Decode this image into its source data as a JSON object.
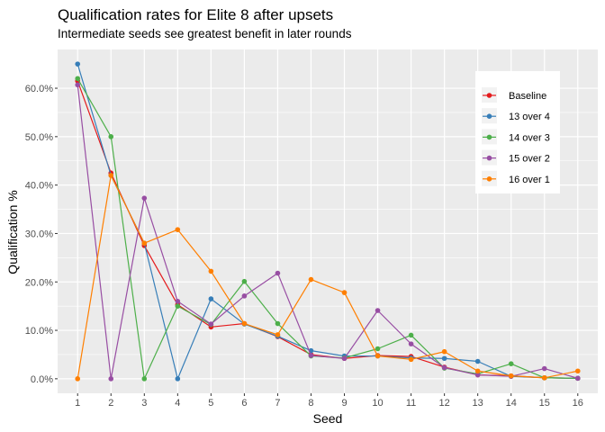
{
  "chart_data": {
    "type": "line",
    "title": "Qualification rates for Elite 8 after upsets",
    "subtitle": "Intermediate seeds see greatest benefit in later rounds",
    "xlabel": "Seed",
    "ylabel": "Qualification %",
    "x": [
      1,
      2,
      3,
      4,
      5,
      6,
      7,
      8,
      9,
      10,
      11,
      12,
      13,
      14,
      15,
      16
    ],
    "xlim": [
      0.4,
      16.6
    ],
    "ylim": [
      -0.03,
      0.68
    ],
    "yticks": [
      0,
      0.1,
      0.2,
      0.3,
      0.4,
      0.5,
      0.6
    ],
    "ytick_labels": [
      "0.0%",
      "10.0%",
      "20.0%",
      "30.0%",
      "40.0%",
      "50.0%",
      "60.0%"
    ],
    "grid": true,
    "legend_position": "right, inside top",
    "series": [
      {
        "name": "Baseline",
        "color": "#e41a1c",
        "values": [
          0.615,
          0.425,
          0.275,
          0.153,
          0.107,
          0.114,
          0.087,
          0.05,
          0.042,
          0.048,
          0.046,
          0.024,
          0.008,
          0.006,
          0.002,
          0.001
        ]
      },
      {
        "name": "13 over 4",
        "color": "#377eb8",
        "values": [
          0.65,
          0.42,
          0.28,
          0.0,
          0.165,
          0.113,
          0.088,
          0.058,
          0.047,
          0.047,
          0.043,
          0.042,
          0.036,
          0.005,
          0.002,
          0.001
        ]
      },
      {
        "name": "14 over 3",
        "color": "#4daf4a",
        "values": [
          0.62,
          0.5,
          0.0,
          0.15,
          0.112,
          0.201,
          0.114,
          0.047,
          0.043,
          0.062,
          0.09,
          0.022,
          0.01,
          0.031,
          0.002,
          0.001
        ]
      },
      {
        "name": "15 over 2",
        "color": "#984ea3",
        "values": [
          0.607,
          0.0,
          0.373,
          0.16,
          0.113,
          0.171,
          0.218,
          0.048,
          0.042,
          0.141,
          0.072,
          0.023,
          0.008,
          0.005,
          0.021,
          0.001
        ]
      },
      {
        "name": "16 over 1",
        "color": "#ff7f00",
        "values": [
          0.0,
          0.42,
          0.28,
          0.308,
          0.222,
          0.114,
          0.091,
          0.205,
          0.178,
          0.047,
          0.04,
          0.056,
          0.016,
          0.006,
          0.002,
          0.016
        ]
      }
    ]
  }
}
